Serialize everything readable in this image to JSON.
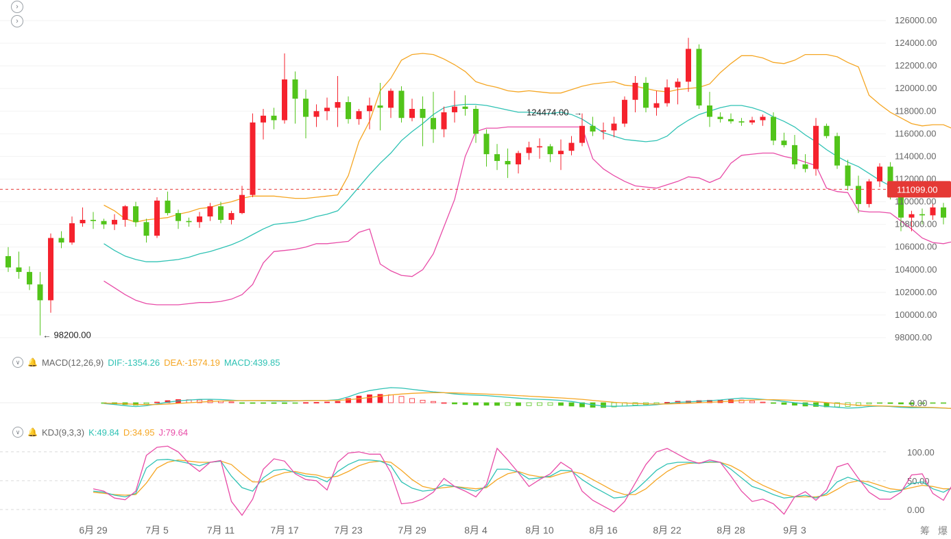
{
  "chart_data": {
    "type": "candlestick",
    "x_labels": [
      "6月 29",
      "7月 5",
      "7月 11",
      "7月 17",
      "7月 23",
      "7月 29",
      "8月 4",
      "8月 10",
      "8月 16",
      "8月 22",
      "8月 28",
      "9月 3"
    ],
    "x_label_day_index": [
      8,
      14,
      20,
      26,
      32,
      38,
      44,
      50,
      56,
      62,
      68,
      74
    ],
    "price_ticks": [
      "126000.00",
      "124000.00",
      "122000.00",
      "120000.00",
      "118000.00",
      "116000.00",
      "114000.00",
      "112000.00",
      "110000.00",
      "108000.00",
      "106000.00",
      "104000.00",
      "102000.00",
      "100000.00",
      "98000.00"
    ],
    "ylim": [
      97600,
      126400
    ],
    "current_price": 111099,
    "current_price_label": "111099.00",
    "high_label": "124474.00",
    "low_label": "98200.00",
    "high_day_index": 54,
    "low_day_index": 3,
    "candles": [
      [
        105200,
        106000,
        103800,
        104200
      ],
      [
        104200,
        105600,
        103200,
        103800
      ],
      [
        103800,
        104300,
        102200,
        102700
      ],
      [
        102700,
        103800,
        98200,
        101300
      ],
      [
        101300,
        107200,
        100200,
        106800
      ],
      [
        106800,
        107400,
        105900,
        106400
      ],
      [
        106400,
        108700,
        106200,
        108100
      ],
      [
        108100,
        109500,
        107800,
        108400
      ],
      [
        108400,
        109100,
        107600,
        108300
      ],
      [
        108300,
        108500,
        107600,
        108000
      ],
      [
        108000,
        108900,
        107500,
        108400
      ],
      [
        108400,
        109700,
        107800,
        109600
      ],
      [
        109600,
        110000,
        107800,
        108200
      ],
      [
        108200,
        108500,
        106400,
        107000
      ],
      [
        107000,
        110400,
        106800,
        110100
      ],
      [
        110100,
        110900,
        108800,
        109000
      ],
      [
        109000,
        109300,
        107600,
        108300
      ],
      [
        108300,
        108600,
        107800,
        108200
      ],
      [
        108200,
        109100,
        107700,
        108700
      ],
      [
        108700,
        109900,
        108300,
        109600
      ],
      [
        109600,
        110000,
        108100,
        108400
      ],
      [
        108400,
        109200,
        108000,
        109000
      ],
      [
        109000,
        111400,
        108900,
        110600
      ],
      [
        110600,
        117800,
        110400,
        117000
      ],
      [
        117000,
        118200,
        115500,
        117600
      ],
      [
        117600,
        118300,
        116400,
        117200
      ],
      [
        117200,
        123100,
        116900,
        120800
      ],
      [
        120800,
        121500,
        116900,
        119100
      ],
      [
        119100,
        119900,
        115600,
        117500
      ],
      [
        117500,
        118600,
        116600,
        118000
      ],
      [
        118000,
        119200,
        117200,
        118300
      ],
      [
        118300,
        121100,
        116600,
        118800
      ],
      [
        118800,
        119300,
        116900,
        117300
      ],
      [
        117300,
        118200,
        116800,
        118000
      ],
      [
        118000,
        119200,
        116400,
        118500
      ],
      [
        118500,
        120500,
        116300,
        118300
      ],
      [
        118300,
        120000,
        117400,
        119800
      ],
      [
        119800,
        120200,
        117000,
        117400
      ],
      [
        117400,
        119100,
        117100,
        118200
      ],
      [
        118200,
        119300,
        114900,
        117400
      ],
      [
        117400,
        119700,
        115200,
        116400
      ],
      [
        116400,
        118400,
        115700,
        117900
      ],
      [
        117900,
        119800,
        117000,
        118400
      ],
      [
        118400,
        119400,
        117600,
        118200
      ],
      [
        118200,
        118500,
        115200,
        116000
      ],
      [
        116000,
        116400,
        113100,
        114200
      ],
      [
        114200,
        115100,
        112800,
        113600
      ],
      [
        113600,
        114700,
        112100,
        113300
      ],
      [
        113300,
        114500,
        112500,
        114300
      ],
      [
        114300,
        115300,
        113700,
        114800
      ],
      [
        114800,
        115600,
        113800,
        114900
      ],
      [
        114900,
        115100,
        113500,
        114200
      ],
      [
        114200,
        115500,
        112800,
        114500
      ],
      [
        114500,
        115800,
        114100,
        115200
      ],
      [
        115200,
        117800,
        114900,
        116700
      ],
      [
        116700,
        117500,
        115800,
        116200
      ],
      [
        116200,
        117000,
        115500,
        116300
      ],
      [
        116300,
        117500,
        115700,
        116900
      ],
      [
        116900,
        119300,
        116600,
        119000
      ],
      [
        119000,
        121100,
        117900,
        120500
      ],
      [
        120500,
        121000,
        117900,
        118300
      ],
      [
        118300,
        119800,
        117600,
        118700
      ],
      [
        118700,
        120800,
        118400,
        120100
      ],
      [
        120100,
        120900,
        118600,
        120600
      ],
      [
        120600,
        124474,
        119700,
        123500
      ],
      [
        123500,
        123900,
        118200,
        118500
      ],
      [
        118500,
        119700,
        116600,
        117500
      ],
      [
        117500,
        117900,
        117000,
        117300
      ],
      [
        117300,
        117800,
        116900,
        117100
      ],
      [
        117100,
        117400,
        116700,
        117000
      ],
      [
        117000,
        117500,
        116800,
        117200
      ],
      [
        117200,
        117700,
        116700,
        117500
      ],
      [
        117500,
        117900,
        115000,
        115400
      ],
      [
        115400,
        116100,
        114800,
        115000
      ],
      [
        115000,
        115900,
        112900,
        113300
      ],
      [
        113300,
        114200,
        112600,
        112900
      ],
      [
        112900,
        117400,
        112300,
        116700
      ],
      [
        116700,
        116900,
        115600,
        115800
      ],
      [
        115800,
        116100,
        112900,
        113200
      ],
      [
        113200,
        113700,
        111000,
        111400
      ],
      [
        111400,
        112300,
        109000,
        109800
      ],
      [
        109800,
        112000,
        109500,
        111800
      ],
      [
        111800,
        113400,
        111300,
        113100
      ],
      [
        113100,
        113500,
        110200,
        110600
      ],
      [
        110600,
        111600,
        107400,
        108600
      ],
      [
        108600,
        109200,
        107400,
        108900
      ],
      [
        108900,
        109400,
        108000,
        108800
      ],
      [
        108800,
        109800,
        108400,
        109500
      ],
      [
        109500,
        109900,
        108000,
        108600
      ],
      [
        108600,
        110000,
        107300,
        109200
      ],
      [
        109200,
        111800,
        108400,
        111099
      ]
    ],
    "bb_upper": [
      109700,
      109200,
      108500,
      108200,
      108400,
      108500,
      108600,
      108900,
      109100,
      109400,
      109500,
      109800,
      110000,
      110300,
      110500,
      110500,
      110500,
      110400,
      110300,
      110300,
      110400,
      110500,
      110600,
      112300,
      115300,
      117100,
      119800,
      120900,
      122500,
      123000,
      123100,
      123000,
      122600,
      122100,
      121500,
      120600,
      120300,
      120100,
      119800,
      119700,
      119800,
      119700,
      119600,
      119600,
      119900,
      120200,
      120400,
      120500,
      120600,
      120300,
      120200,
      120000,
      119800,
      119700,
      119900,
      120000,
      120100,
      120400,
      121400,
      122200,
      122900,
      122900,
      122700,
      122300,
      122200,
      122500,
      123000,
      123000,
      123000,
      122800,
      122300,
      121900,
      119400,
      118600,
      117900,
      117400,
      116900,
      116700,
      116800,
      116800,
      116400,
      114400
    ],
    "bb_mid": [
      106300,
      105700,
      105200,
      104900,
      104700,
      104700,
      104800,
      104900,
      105100,
      105400,
      105600,
      105900,
      106200,
      106600,
      107100,
      107600,
      108000,
      108100,
      108200,
      108400,
      108700,
      108900,
      109200,
      110200,
      111300,
      112400,
      113400,
      114300,
      115400,
      116200,
      116900,
      117700,
      118300,
      118500,
      118600,
      118600,
      118500,
      118300,
      118100,
      117900,
      117900,
      117800,
      117800,
      117900,
      117700,
      117300,
      116700,
      116100,
      115800,
      115500,
      115400,
      115300,
      115400,
      115800,
      116600,
      117200,
      117700,
      118000,
      118300,
      118500,
      118500,
      118300,
      118000,
      117500,
      117100,
      116600,
      115900,
      115300,
      114600,
      114000,
      113500,
      113100,
      112500,
      111900,
      111400,
      111000,
      110700,
      110600,
      110700,
      110600,
      110500,
      110600
    ],
    "bb_lower": [
      103000,
      102400,
      101800,
      101300,
      101000,
      100900,
      100900,
      100900,
      101000,
      101100,
      101100,
      101200,
      101400,
      101800,
      102700,
      104600,
      105600,
      105700,
      105800,
      106000,
      106300,
      106300,
      106400,
      106500,
      107300,
      107600,
      104500,
      103900,
      103500,
      103400,
      104000,
      105400,
      107800,
      110200,
      114000,
      116200,
      116500,
      116500,
      116600,
      116600,
      116600,
      116600,
      116600,
      116600,
      116600,
      116600,
      113800,
      112900,
      112300,
      111800,
      111400,
      111300,
      111200,
      111500,
      111800,
      112200,
      112100,
      111700,
      112100,
      113400,
      114100,
      114200,
      114300,
      114300,
      114000,
      113800,
      113500,
      113200,
      111200,
      110900,
      110800,
      109200,
      109100,
      109100,
      109000,
      108300,
      107600,
      106800,
      106400,
      106300,
      106500,
      106900
    ]
  },
  "macd": {
    "label": "MACD(12,26,9)",
    "dif_label": "DIF:-1354.26",
    "dea_label": "DEA:-1574.19",
    "macd_label": "MACD:439.85",
    "zero_label": "0.00",
    "dif": [
      -200,
      -420,
      -700,
      -920,
      -720,
      -300,
      120,
      450,
      640,
      780,
      820,
      760,
      600,
      480,
      500,
      480,
      400,
      380,
      420,
      520,
      520,
      560,
      700,
      1400,
      2300,
      2900,
      3300,
      3600,
      3500,
      3200,
      2900,
      2600,
      2400,
      2100,
      1900,
      1800,
      1700,
      1500,
      1300,
      1100,
      900,
      800,
      700,
      550,
      300,
      -100,
      -500,
      -800,
      -850,
      -800,
      -700,
      -650,
      -500,
      -200,
      100,
      200,
      350,
      500,
      650,
      900,
      1100,
      1000,
      800,
      600,
      300,
      0,
      -300,
      -600,
      -900,
      -1100,
      -1300,
      -1200,
      -900,
      -800,
      -900,
      -1100,
      -1200,
      -1150,
      -1200,
      -1300,
      -1400,
      -1354
    ],
    "dea": [
      -100,
      -180,
      -280,
      -400,
      -460,
      -420,
      -320,
      -160,
      -10,
      140,
      290,
      400,
      470,
      510,
      530,
      530,
      520,
      510,
      500,
      500,
      510,
      520,
      560,
      720,
      960,
      1250,
      1560,
      1850,
      2080,
      2240,
      2350,
      2400,
      2400,
      2340,
      2260,
      2170,
      2070,
      1960,
      1840,
      1700,
      1560,
      1420,
      1280,
      1140,
      980,
      800,
      560,
      320,
      100,
      -60,
      -180,
      -270,
      -320,
      -300,
      -220,
      -130,
      -20,
      100,
      230,
      380,
      530,
      650,
      720,
      720,
      660,
      560,
      420,
      240,
      40,
      -180,
      -420,
      -600,
      -700,
      -760,
      -820,
      -900,
      -980,
      -1060,
      -1140,
      -1250,
      -1440,
      -1574
    ],
    "hist": [
      -180,
      -300,
      -440,
      -560,
      -300,
      150,
      500,
      750,
      700,
      650,
      560,
      400,
      180,
      -40,
      -60,
      -100,
      -180,
      -200,
      -140,
      40,
      80,
      160,
      300,
      1000,
      1600,
      1900,
      2000,
      1900,
      1500,
      1000,
      600,
      300,
      0,
      -300,
      -450,
      -550,
      -600,
      -650,
      -650,
      -700,
      -700,
      -650,
      -620,
      -650,
      -800,
      -1000,
      -1100,
      -1150,
      -1000,
      -800,
      -600,
      -450,
      -300,
      100,
      350,
      400,
      500,
      600,
      650,
      700,
      650,
      400,
      150,
      -100,
      -400,
      -600,
      -800,
      -900,
      -1000,
      -1000,
      -900,
      -700,
      -300,
      -150,
      -200,
      -300,
      -350,
      -250,
      -150,
      -100,
      200,
      439
    ]
  },
  "kdj": {
    "label": "KDJ(9,3,3)",
    "k_label": "K:49.84",
    "d_label": "D:34.95",
    "j_label": "J:79.64",
    "ticks": [
      "100.00",
      "50.00",
      "0.00"
    ],
    "k": [
      32,
      30,
      25,
      22,
      28,
      72,
      86,
      87,
      84,
      80,
      76,
      82,
      84,
      58,
      38,
      32,
      55,
      68,
      70,
      64,
      58,
      56,
      48,
      66,
      78,
      86,
      86,
      84,
      76,
      48,
      37,
      32,
      34,
      43,
      40,
      36,
      32,
      40,
      70,
      70,
      65,
      53,
      55,
      58,
      68,
      67,
      52,
      40,
      30,
      20,
      22,
      33,
      50,
      68,
      79,
      82,
      82,
      80,
      83,
      82,
      70,
      55,
      40,
      34,
      26,
      20,
      22,
      25,
      20,
      28,
      48,
      56,
      50,
      42,
      34,
      30,
      33,
      45,
      48,
      36,
      30,
      40,
      50
    ],
    "d": [
      30,
      28,
      26,
      25,
      26,
      46,
      72,
      82,
      86,
      84,
      82,
      82,
      84,
      78,
      62,
      48,
      48,
      58,
      64,
      66,
      62,
      60,
      55,
      58,
      66,
      76,
      82,
      84,
      82,
      68,
      52,
      40,
      36,
      38,
      40,
      38,
      36,
      38,
      52,
      62,
      66,
      60,
      57,
      56,
      62,
      66,
      62,
      52,
      42,
      32,
      26,
      26,
      36,
      52,
      66,
      76,
      80,
      81,
      82,
      82,
      76,
      66,
      52,
      42,
      34,
      26,
      22,
      22,
      22,
      25,
      35,
      46,
      50,
      48,
      42,
      36,
      34,
      38,
      42,
      40,
      36,
      36,
      35
    ],
    "j": [
      36,
      32,
      20,
      17,
      32,
      94,
      108,
      110,
      100,
      80,
      66,
      82,
      85,
      14,
      -10,
      18,
      70,
      88,
      84,
      62,
      52,
      50,
      34,
      82,
      98,
      100,
      96,
      96,
      64,
      10,
      12,
      18,
      30,
      54,
      40,
      32,
      22,
      44,
      106,
      86,
      64,
      40,
      52,
      62,
      82,
      70,
      32,
      16,
      6,
      -4,
      14,
      46,
      78,
      100,
      106,
      96,
      86,
      80,
      86,
      82,
      58,
      32,
      14,
      18,
      10,
      -8,
      22,
      31,
      16,
      34,
      74,
      80,
      54,
      30,
      18,
      18,
      30,
      60,
      62,
      28,
      16,
      48,
      80
    ]
  },
  "icons": {
    "top_btn_1": "chevron-right-circle-icon",
    "top_btn_2": "chevron-right-circle-icon",
    "collapse": "chevron-down-circle-icon",
    "alert": "bell-icon"
  },
  "colors": {
    "up": "#f5222d",
    "down": "#52c41a",
    "bb_upper": "#f5a623",
    "bb_mid": "#2ec2b4",
    "bb_lower": "#e84ba7",
    "dif": "#2ec2b4",
    "dea": "#f5a623",
    "price_line": "#e53935"
  },
  "corner": {
    "chip_label": "筹",
    "burst_label": "爆"
  }
}
